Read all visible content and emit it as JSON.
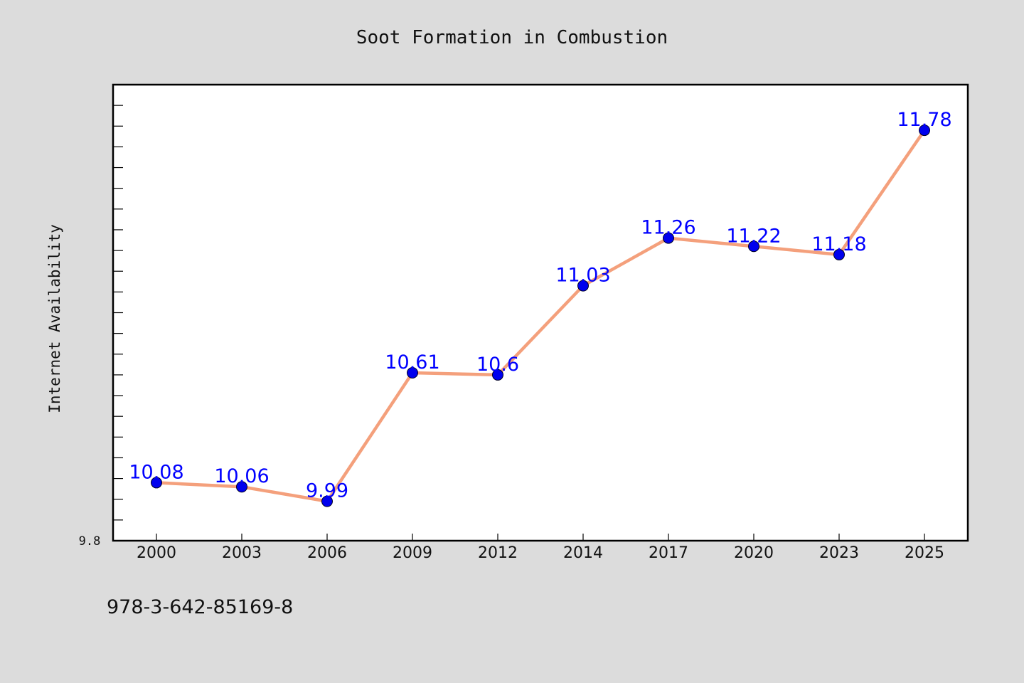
{
  "chart_data": {
    "type": "line",
    "title": "Soot Formation in Combustion",
    "xlabel": "",
    "ylabel": "Internet Availability",
    "categories": [
      "2000",
      "2003",
      "2006",
      "2009",
      "2012",
      "2014",
      "2017",
      "2020",
      "2023",
      "2025"
    ],
    "series": [
      {
        "values": [
          10.08,
          10.06,
          9.99,
          10.61,
          10.6,
          11.03,
          11.26,
          11.22,
          11.18,
          11.78
        ],
        "labels": [
          "10.08",
          "10.06",
          "9.99",
          "10.61",
          "10.6",
          "11.03",
          "11.26",
          "11.22",
          "11.18",
          "11.78"
        ],
        "line_color": "#f4a07c",
        "marker_color": "#0000ee",
        "label_color": "#0000ff"
      }
    ],
    "y_tick_labels": [
      "9.8"
    ],
    "ylim": [
      9.8,
      12.0
    ],
    "grid": false,
    "legend": "none",
    "background": "#dcdcdc",
    "plot_background": "#ffffff"
  },
  "footer": {
    "isbn": "978-3-642-85169-8"
  }
}
